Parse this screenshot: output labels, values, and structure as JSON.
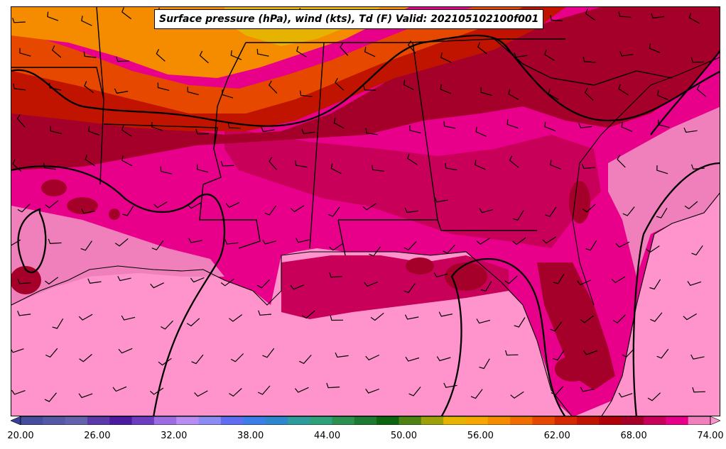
{
  "title": "Surface pressure (hPa), wind (kts), Td (F) Valid: 202105102100f001",
  "colorbar": {
    "min": 18,
    "max": 76,
    "step": 2,
    "colors": [
      "#3a3f9a",
      "#464c9e",
      "#5558a4",
      "#6462aa",
      "#5a3aa6",
      "#4b1aa0",
      "#6e3cc0",
      "#9c6ce0",
      "#b88cf0",
      "#8c8cf4",
      "#5f6ef0",
      "#3c7ee8",
      "#2e86cc",
      "#2e9c9c",
      "#2ea07a",
      "#2c9050",
      "#1e7a32",
      "#0c6410",
      "#4f8214",
      "#9ea00a",
      "#e6b400",
      "#f5a600",
      "#f58c00",
      "#f06e00",
      "#e64800",
      "#d62800",
      "#c01400",
      "#b0000a",
      "#a4002a",
      "#c8005a",
      "#e8008a",
      "#f080bc",
      "#ff94cc"
    ],
    "tick_labels": [
      "20.00",
      "26.00",
      "32.00",
      "38.00",
      "44.00",
      "50.00",
      "56.00",
      "62.00",
      "68.00",
      "74.00"
    ],
    "tick_values": [
      20,
      26,
      32,
      38,
      44,
      50,
      56,
      62,
      68,
      74
    ]
  },
  "map_colors": {
    "gulf": "#ff94cc",
    "land_moist": "#e8008a",
    "land_very_moist": "#c8005a",
    "dark_red": "#a4002a",
    "red": "#c01400",
    "orange_red": "#e64800",
    "orange": "#f58c00",
    "gold": "#e6b400",
    "light_pink": "#f080bc"
  }
}
